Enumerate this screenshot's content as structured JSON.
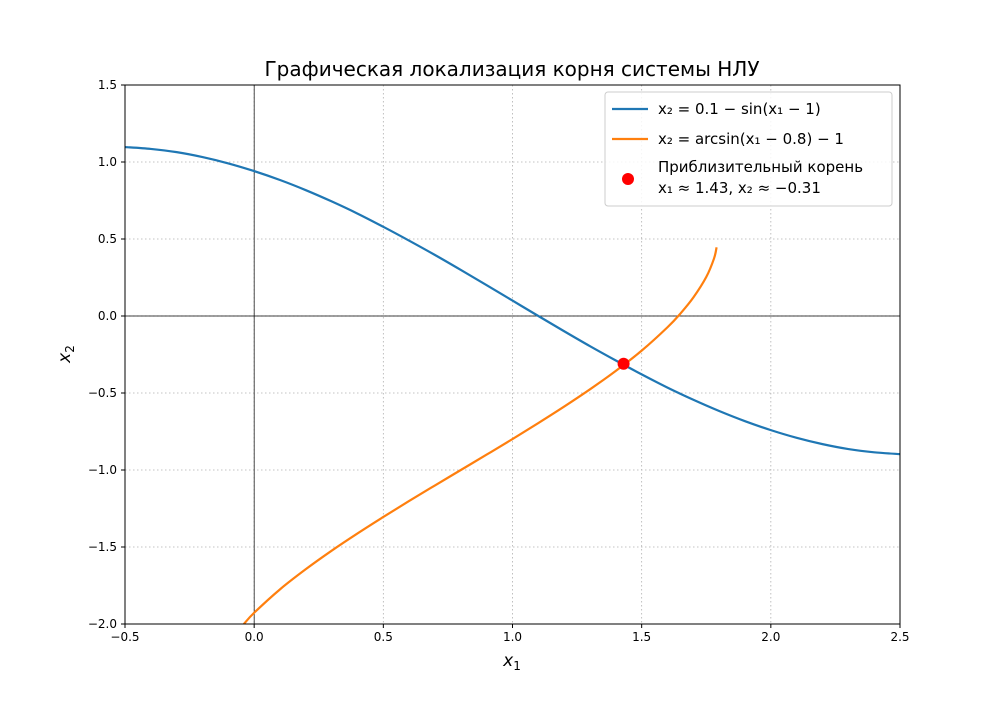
{
  "chart_data": {
    "type": "line",
    "title": "Графическая локализация корня системы НЛУ",
    "xlabel": {
      "main": "x",
      "sub": "1"
    },
    "ylabel": {
      "main": "x",
      "sub": "2"
    },
    "xlim": [
      -0.5,
      2.5
    ],
    "ylim": [
      -2.0,
      1.5
    ],
    "xticks": [
      -0.5,
      0.0,
      0.5,
      1.0,
      1.5,
      2.0,
      2.5
    ],
    "xtick_labels": [
      "−0.5",
      "0.0",
      "0.5",
      "1.0",
      "1.5",
      "2.0",
      "2.5"
    ],
    "yticks": [
      -2.0,
      -1.5,
      -1.0,
      -0.5,
      0.0,
      0.5,
      1.0,
      1.5
    ],
    "ytick_labels": [
      "−2.0",
      "−1.5",
      "−1.0",
      "−0.5",
      "0.0",
      "0.5",
      "1.0",
      "1.5"
    ],
    "grid": true,
    "grid_style": "dotted",
    "zero_lines": true,
    "legend_placement": "top-right",
    "series": [
      {
        "name": "x₂ = 0.1 − sin(x₁ − 1)",
        "color": "#1f77b4",
        "x": [
          -0.5,
          -0.4,
          -0.3,
          -0.2,
          -0.1,
          0.0,
          0.1,
          0.2,
          0.3,
          0.4,
          0.5,
          0.6,
          0.7,
          0.8,
          0.9,
          1.0,
          1.1,
          1.2,
          1.3,
          1.4,
          1.5,
          1.6,
          1.7,
          1.8,
          1.9,
          2.0,
          2.1,
          2.2,
          2.3,
          2.4,
          2.5
        ],
        "y": [
          1.097,
          1.085,
          1.064,
          1.032,
          0.991,
          0.941,
          0.883,
          0.817,
          0.744,
          0.665,
          0.579,
          0.489,
          0.396,
          0.299,
          0.2,
          0.1,
          0.0,
          -0.099,
          -0.196,
          -0.289,
          -0.379,
          -0.465,
          -0.544,
          -0.617,
          -0.683,
          -0.741,
          -0.791,
          -0.832,
          -0.864,
          -0.885,
          -0.897
        ]
      },
      {
        "name": "x₂ = arcsin(x₁ − 0.8) − 1",
        "color": "#ff7f0e",
        "x": [
          -0.04,
          0.0,
          0.1,
          0.2,
          0.3,
          0.4,
          0.5,
          0.6,
          0.7,
          0.8,
          0.9,
          1.0,
          1.1,
          1.2,
          1.3,
          1.4,
          1.5,
          1.6,
          1.65,
          1.7,
          1.75,
          1.78,
          1.79
        ],
        "y": [
          -2.0,
          -1.927,
          -1.775,
          -1.644,
          -1.524,
          -1.412,
          -1.305,
          -1.201,
          -1.1,
          -1.0,
          -0.9,
          -0.799,
          -0.695,
          -0.588,
          -0.476,
          -0.356,
          -0.225,
          -0.073,
          0.016,
          0.12,
          0.253,
          0.373,
          0.446
        ]
      }
    ],
    "root_point": {
      "label_line1": "Приблизительный корень",
      "label_line2": "x₁ ≈ 1.43, x₂ ≈ −0.31",
      "x": 1.43,
      "y": -0.31,
      "color": "#ff0000"
    }
  }
}
